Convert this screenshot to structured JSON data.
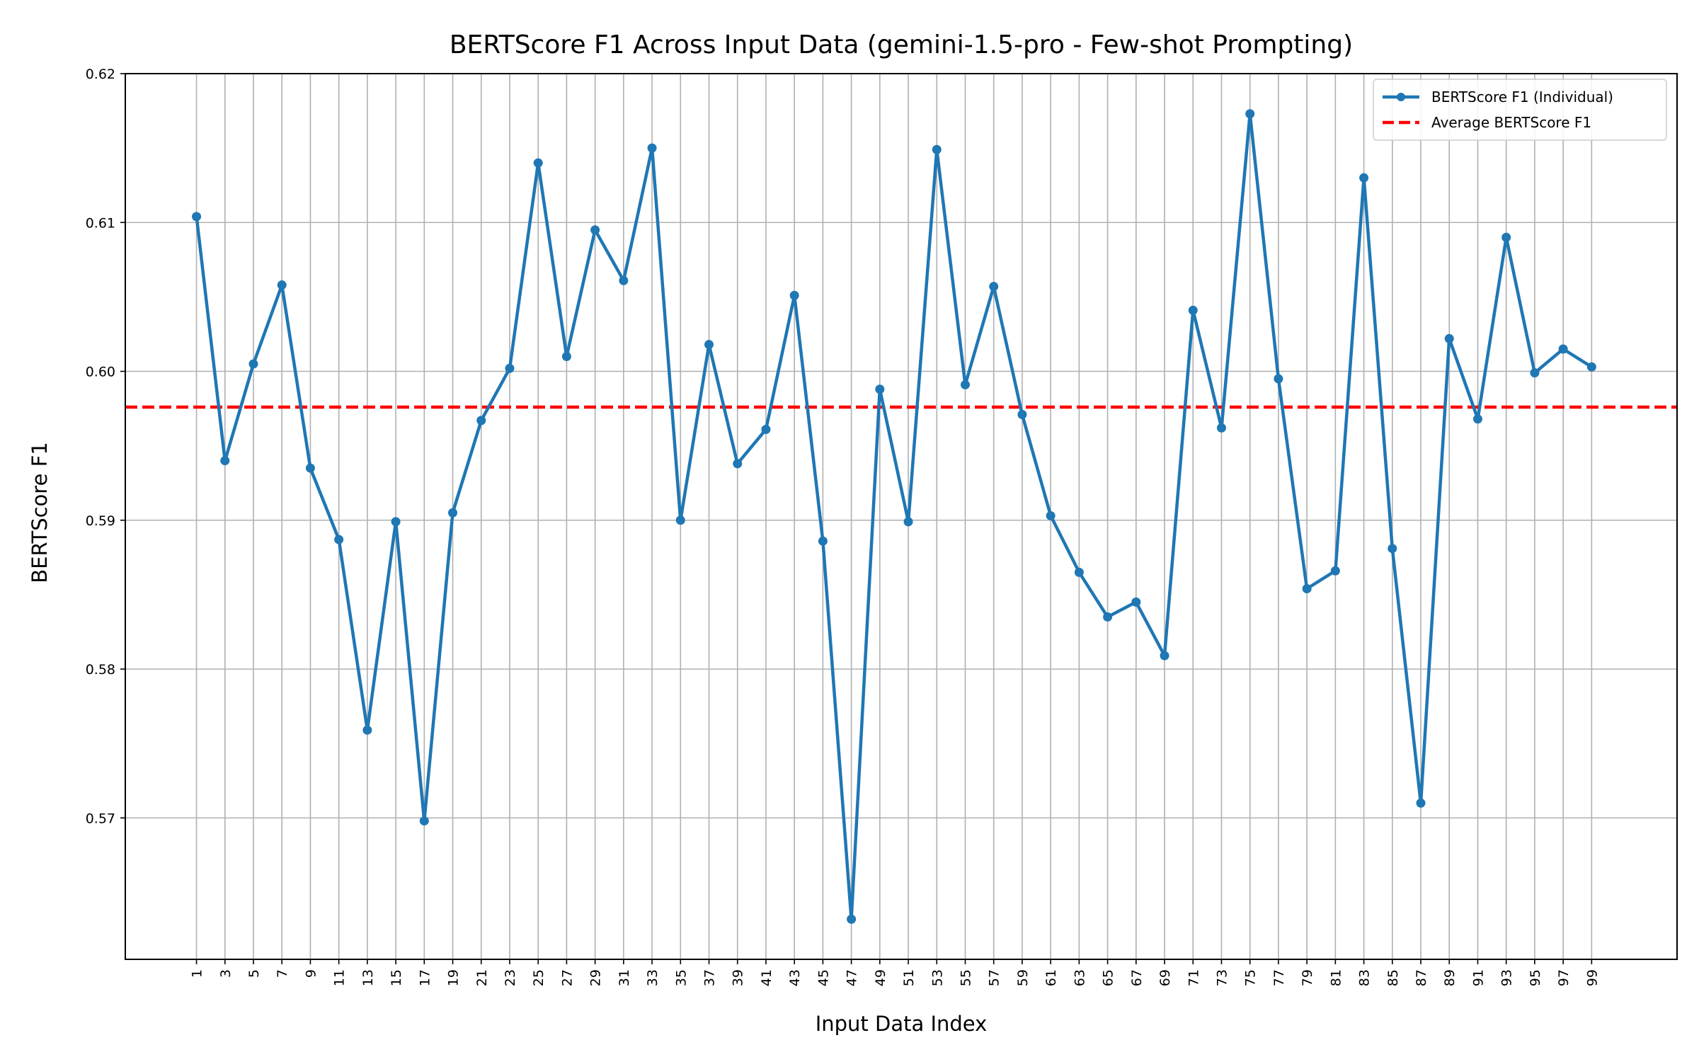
{
  "chart_data": {
    "type": "line",
    "title": "BERTScore F1 Across Input Data (gemini-1.5-pro - Few-shot Prompting)",
    "xlabel": "Input Data Index",
    "ylabel": "BERTScore F1",
    "x": [
      1,
      3,
      5,
      7,
      9,
      11,
      13,
      15,
      17,
      19,
      21,
      23,
      25,
      27,
      29,
      31,
      33,
      35,
      37,
      39,
      41,
      43,
      45,
      47,
      49,
      51,
      53,
      55,
      57,
      59,
      61,
      63,
      65,
      67,
      69,
      71,
      73,
      75,
      77,
      79,
      81,
      83,
      85,
      87,
      89,
      91,
      93,
      95,
      97,
      99
    ],
    "x_ticks": [
      "1",
      "3",
      "5",
      "7",
      "9",
      "11",
      "13",
      "15",
      "17",
      "19",
      "21",
      "23",
      "25",
      "27",
      "29",
      "31",
      "33",
      "35",
      "37",
      "39",
      "41",
      "43",
      "45",
      "47",
      "49",
      "51",
      "53",
      "55",
      "57",
      "59",
      "61",
      "63",
      "65",
      "67",
      "69",
      "71",
      "73",
      "75",
      "77",
      "79",
      "81",
      "83",
      "85",
      "87",
      "89",
      "91",
      "93",
      "95",
      "97",
      "99"
    ],
    "y_ticks": [
      "0.57",
      "0.58",
      "0.59",
      "0.60",
      "0.61",
      "0.62"
    ],
    "y_tick_values": [
      0.57,
      0.58,
      0.59,
      0.6,
      0.61,
      0.62
    ],
    "xlim": [
      -4,
      105
    ],
    "ylim": [
      0.5605,
      0.62
    ],
    "grid": true,
    "legend_position": "top-right",
    "series": [
      {
        "name": "BERTScore F1 (Individual)",
        "color": "#1f77b4",
        "marker": "circle",
        "values": [
          0.6104,
          0.594,
          0.6005,
          0.6058,
          0.5935,
          0.5887,
          0.5759,
          0.5899,
          0.5698,
          0.5905,
          0.5967,
          0.6002,
          0.614,
          0.601,
          0.6095,
          0.6061,
          0.615,
          0.59,
          0.6018,
          0.5938,
          0.5961,
          0.6051,
          0.5886,
          0.5632,
          0.5988,
          0.5899,
          0.6149,
          0.5991,
          0.6057,
          0.5971,
          0.5903,
          0.5865,
          0.5835,
          0.5845,
          0.5809,
          0.6041,
          0.5962,
          0.6173,
          0.5995,
          0.5854,
          0.5866,
          0.613,
          0.5881,
          0.571,
          0.6022,
          0.5968,
          0.609,
          0.5999,
          0.6015,
          0.6003
        ]
      },
      {
        "name": "Average BERTScore F1",
        "color": "#ff0000",
        "style": "dashed",
        "constant": 0.5976
      }
    ]
  }
}
